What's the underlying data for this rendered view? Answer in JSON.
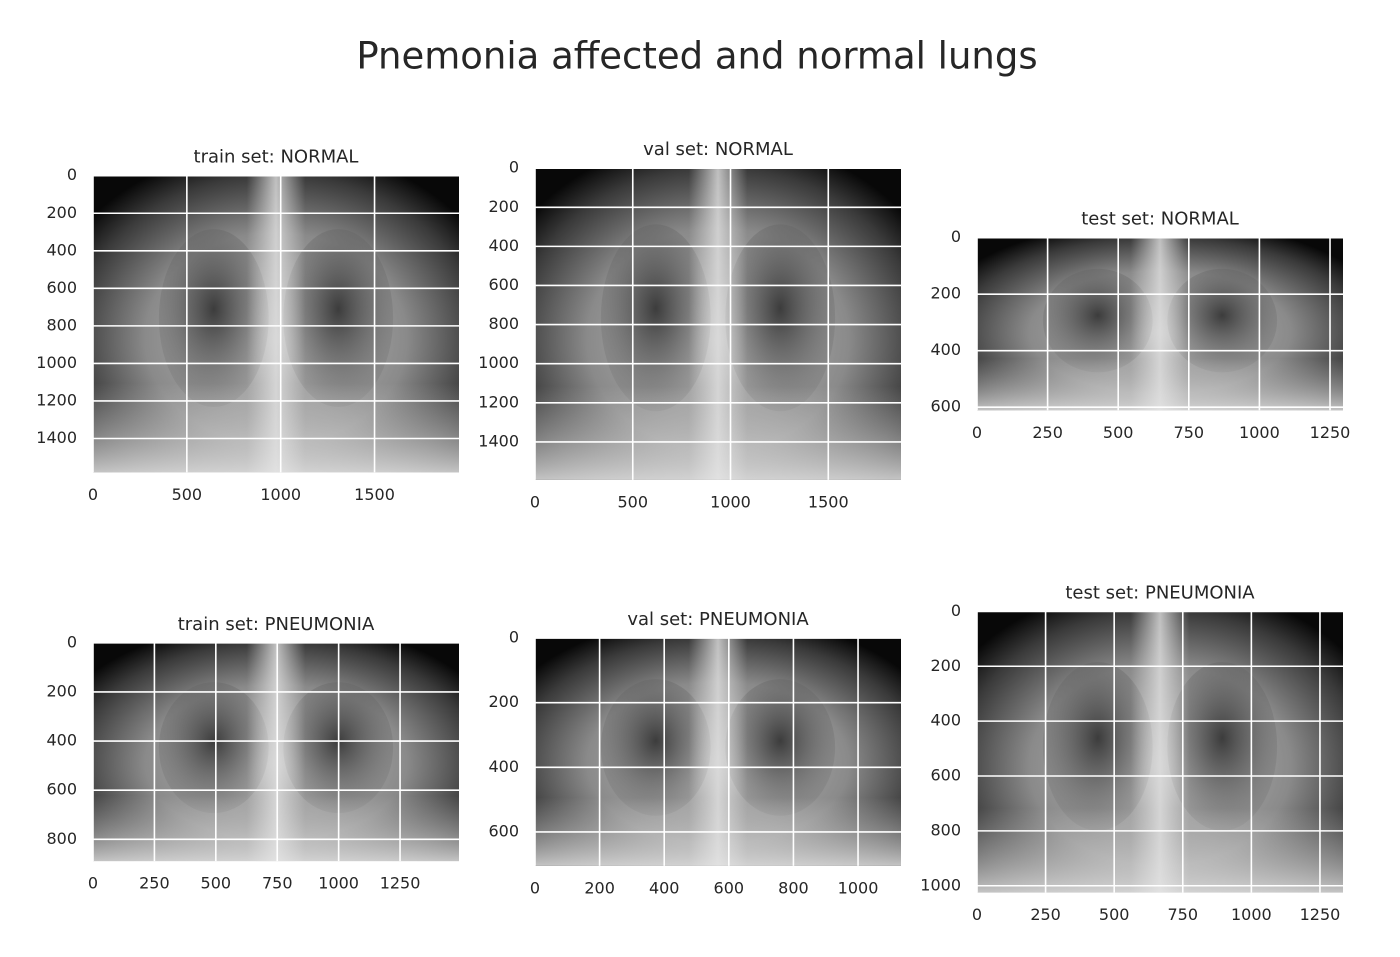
{
  "title": "Pnemonia affected and normal lungs",
  "chart_data": [
    {
      "type": "image",
      "title": "train set: NORMAL",
      "xlim": [
        0,
        1950
      ],
      "ylim": [
        1580,
        0
      ],
      "xticks": [
        0,
        500,
        1000,
        1500
      ],
      "yticks": [
        0,
        200,
        400,
        600,
        800,
        1000,
        1200,
        1400
      ],
      "grid": true
    },
    {
      "type": "image",
      "title": "val set: NORMAL",
      "xlim": [
        0,
        1872
      ],
      "ylim": [
        1594,
        0
      ],
      "xticks": [
        0,
        500,
        1000,
        1500
      ],
      "yticks": [
        0,
        200,
        400,
        600,
        800,
        1000,
        1200,
        1400
      ],
      "grid": true
    },
    {
      "type": "image",
      "title": "test set: NORMAL",
      "xlim": [
        0,
        1296
      ],
      "ylim": [
        611,
        0
      ],
      "xticks": [
        0,
        250,
        500,
        750,
        1000,
        1250
      ],
      "yticks": [
        0,
        200,
        400,
        600
      ],
      "grid": true
    },
    {
      "type": "image",
      "title": "train set: PNEUMONIA",
      "xlim": [
        0,
        1490
      ],
      "ylim": [
        889,
        0
      ],
      "xticks": [
        0,
        250,
        500,
        750,
        1000,
        1250
      ],
      "yticks": [
        0,
        200,
        400,
        600,
        800
      ],
      "grid": true
    },
    {
      "type": "image",
      "title": "val set: PNEUMONIA",
      "xlim": [
        0,
        1133
      ],
      "ylim": [
        705,
        0
      ],
      "xticks": [
        0,
        200,
        400,
        600,
        800,
        1000
      ],
      "yticks": [
        0,
        200,
        400,
        600
      ],
      "grid": true
    },
    {
      "type": "image",
      "title": "test set: PNEUMONIA",
      "xlim": [
        0,
        1334
      ],
      "ylim": [
        1025,
        0
      ],
      "xticks": [
        0,
        250,
        500,
        750,
        1000,
        1250
      ],
      "yticks": [
        0,
        200,
        400,
        600,
        800,
        1000
      ],
      "grid": true
    }
  ]
}
